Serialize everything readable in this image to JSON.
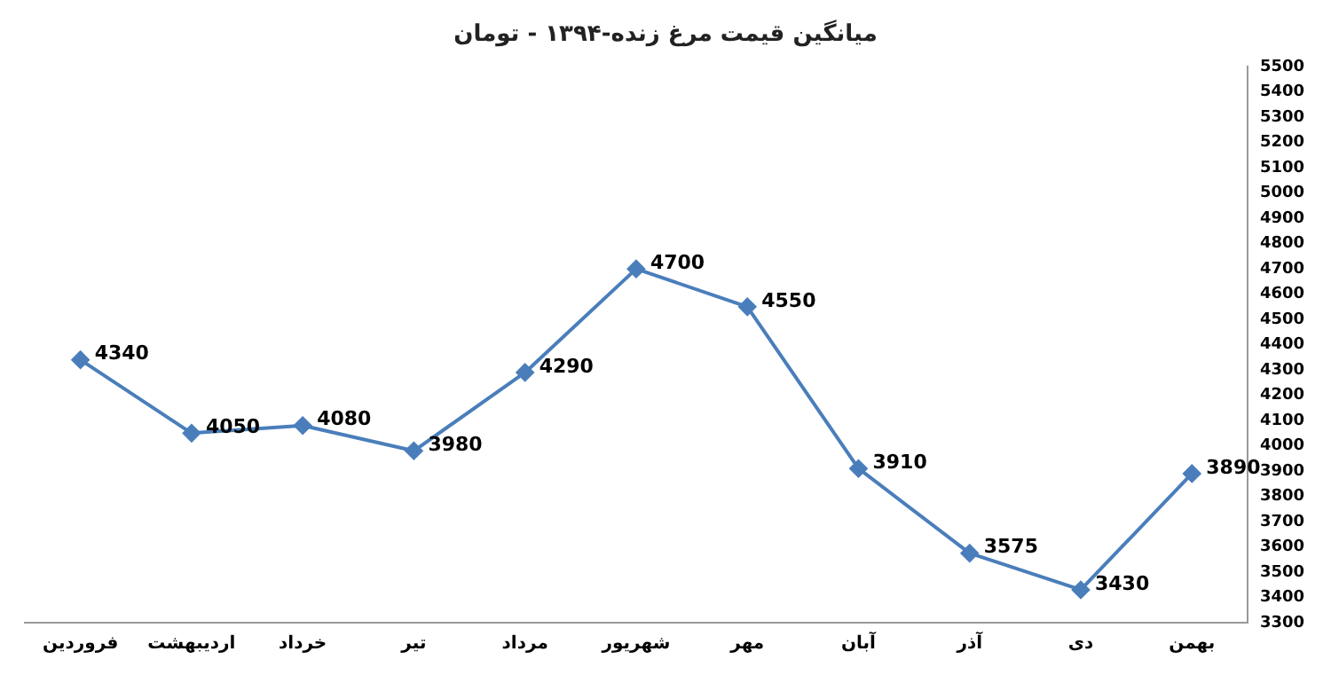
{
  "chart_data": {
    "type": "line",
    "title": "میانگین قیمت مرغ زنده-۱۳۹۴ - تومان",
    "categories": [
      "فروردین",
      "اردیبهشت",
      "خرداد",
      "تیر",
      "مرداد",
      "شهریور",
      "مهر",
      "آبان",
      "آذر",
      "دی",
      "بهمن"
    ],
    "series": [
      {
        "color": "#4a7ebb",
        "values": [
          4340,
          4050,
          4080,
          3980,
          4290,
          4700,
          4550,
          3910,
          3575,
          3430,
          3890
        ]
      }
    ],
    "ylim": [
      3300,
      5500
    ],
    "yticks": [
      3300,
      3400,
      3500,
      3600,
      3700,
      3800,
      3900,
      4000,
      4100,
      4200,
      4300,
      4400,
      4500,
      4600,
      4700,
      4800,
      4900,
      5000,
      5100,
      5200,
      5300,
      5400,
      5500
    ],
    "grid": false,
    "legend": false,
    "marker": "diamond",
    "line_style": "solid",
    "data_labels": true
  }
}
